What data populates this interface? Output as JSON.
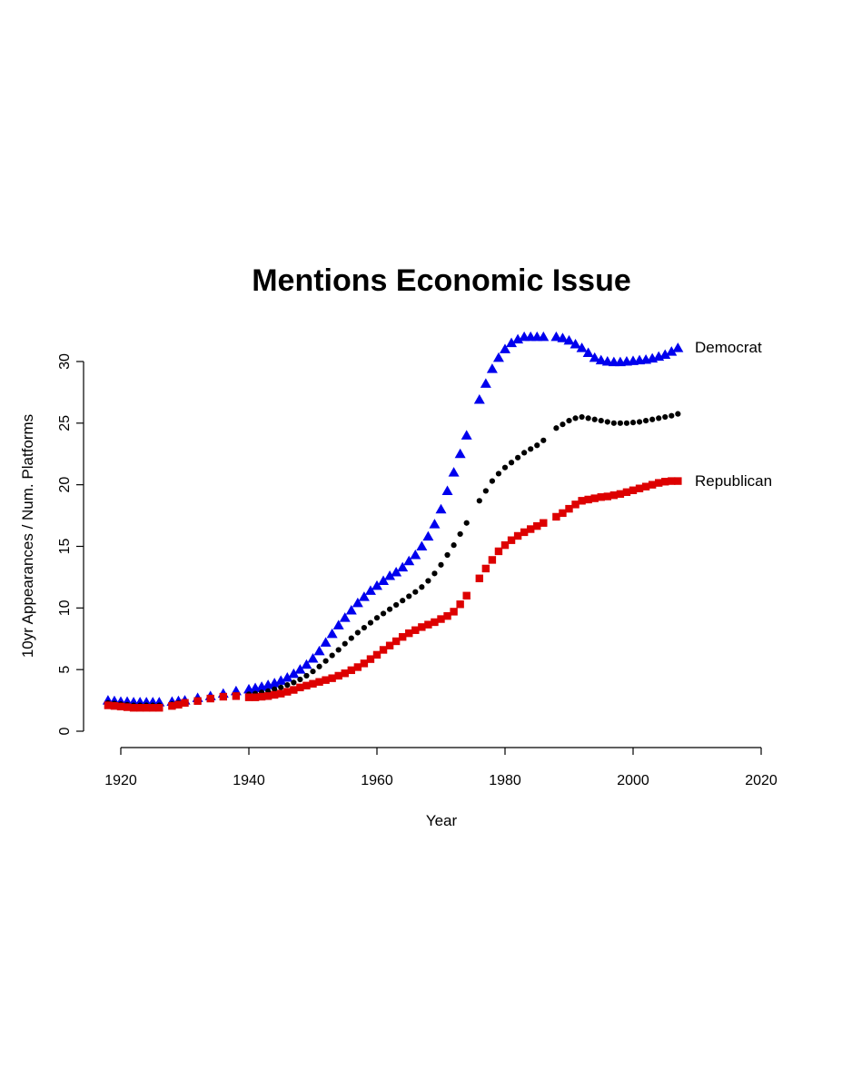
{
  "chart_data": {
    "type": "scatter",
    "title": "Mentions Economic Issue",
    "xlabel": "Year",
    "ylabel": "10yr Appearances / Num. Platforms",
    "xlim": [
      1918,
      2020
    ],
    "ylim": [
      0,
      32
    ],
    "xticks": [
      1920,
      1940,
      1960,
      1980,
      2000,
      2020
    ],
    "yticks": [
      0,
      5,
      10,
      15,
      20,
      25,
      30
    ],
    "grid": false,
    "legend": "none",
    "series": [
      {
        "name": "Democrat",
        "color": "#0000ee",
        "marker": "triangle",
        "points": [
          [
            1918,
            2.5
          ],
          [
            1919,
            2.45
          ],
          [
            1920,
            2.4
          ],
          [
            1921,
            2.4
          ],
          [
            1922,
            2.35
          ],
          [
            1923,
            2.35
          ],
          [
            1924,
            2.35
          ],
          [
            1925,
            2.35
          ],
          [
            1926,
            2.35
          ],
          [
            1928,
            2.4
          ],
          [
            1929,
            2.45
          ],
          [
            1930,
            2.5
          ],
          [
            1932,
            2.7
          ],
          [
            1934,
            2.85
          ],
          [
            1936,
            3.05
          ],
          [
            1938,
            3.25
          ],
          [
            1940,
            3.4
          ],
          [
            1941,
            3.5
          ],
          [
            1942,
            3.6
          ],
          [
            1943,
            3.75
          ],
          [
            1944,
            3.9
          ],
          [
            1945,
            4.1
          ],
          [
            1946,
            4.35
          ],
          [
            1947,
            4.65
          ],
          [
            1948,
            5.0
          ],
          [
            1949,
            5.4
          ],
          [
            1950,
            5.9
          ],
          [
            1951,
            6.5
          ],
          [
            1952,
            7.2
          ],
          [
            1953,
            7.9
          ],
          [
            1954,
            8.6
          ],
          [
            1955,
            9.2
          ],
          [
            1956,
            9.8
          ],
          [
            1957,
            10.4
          ],
          [
            1958,
            10.9
          ],
          [
            1959,
            11.4
          ],
          [
            1960,
            11.8
          ],
          [
            1961,
            12.2
          ],
          [
            1962,
            12.6
          ],
          [
            1963,
            12.9
          ],
          [
            1964,
            13.3
          ],
          [
            1965,
            13.8
          ],
          [
            1966,
            14.3
          ],
          [
            1967,
            15.0
          ],
          [
            1968,
            15.8
          ],
          [
            1969,
            16.8
          ],
          [
            1970,
            18.0
          ],
          [
            1971,
            19.5
          ],
          [
            1972,
            21.0
          ],
          [
            1973,
            22.5
          ],
          [
            1974,
            24.0
          ],
          [
            1976,
            26.9
          ],
          [
            1977,
            28.2
          ],
          [
            1978,
            29.4
          ],
          [
            1979,
            30.3
          ],
          [
            1980,
            31.0
          ],
          [
            1981,
            31.5
          ],
          [
            1982,
            31.8
          ],
          [
            1983,
            32.0
          ],
          [
            1984,
            32.0
          ],
          [
            1985,
            32.0
          ],
          [
            1986,
            32.0
          ],
          [
            1988,
            32.0
          ],
          [
            1989,
            31.9
          ],
          [
            1990,
            31.7
          ],
          [
            1991,
            31.4
          ],
          [
            1992,
            31.1
          ],
          [
            1993,
            30.7
          ],
          [
            1994,
            30.3
          ],
          [
            1995,
            30.1
          ],
          [
            1996,
            30.0
          ],
          [
            1997,
            29.95
          ],
          [
            1998,
            29.95
          ],
          [
            1999,
            30.0
          ],
          [
            2000,
            30.05
          ],
          [
            2001,
            30.1
          ],
          [
            2002,
            30.15
          ],
          [
            2003,
            30.25
          ],
          [
            2004,
            30.4
          ],
          [
            2005,
            30.55
          ],
          [
            2006,
            30.8
          ],
          [
            2007,
            31.1
          ]
        ]
      },
      {
        "name": "",
        "color": "#000000",
        "marker": "circle",
        "points": [
          [
            1918,
            2.3
          ],
          [
            1919,
            2.25
          ],
          [
            1920,
            2.2
          ],
          [
            1921,
            2.15
          ],
          [
            1922,
            2.1
          ],
          [
            1923,
            2.1
          ],
          [
            1924,
            2.1
          ],
          [
            1925,
            2.1
          ],
          [
            1926,
            2.1
          ],
          [
            1928,
            2.2
          ],
          [
            1929,
            2.3
          ],
          [
            1930,
            2.4
          ],
          [
            1932,
            2.55
          ],
          [
            1934,
            2.7
          ],
          [
            1936,
            2.85
          ],
          [
            1938,
            2.95
          ],
          [
            1940,
            3.0
          ],
          [
            1941,
            3.05
          ],
          [
            1942,
            3.15
          ],
          [
            1943,
            3.25
          ],
          [
            1944,
            3.4
          ],
          [
            1945,
            3.55
          ],
          [
            1946,
            3.75
          ],
          [
            1947,
            3.95
          ],
          [
            1948,
            4.2
          ],
          [
            1949,
            4.5
          ],
          [
            1950,
            4.85
          ],
          [
            1951,
            5.25
          ],
          [
            1952,
            5.7
          ],
          [
            1953,
            6.15
          ],
          [
            1954,
            6.6
          ],
          [
            1955,
            7.1
          ],
          [
            1956,
            7.55
          ],
          [
            1957,
            8.0
          ],
          [
            1958,
            8.4
          ],
          [
            1959,
            8.8
          ],
          [
            1960,
            9.2
          ],
          [
            1961,
            9.55
          ],
          [
            1962,
            9.9
          ],
          [
            1963,
            10.25
          ],
          [
            1964,
            10.6
          ],
          [
            1965,
            10.95
          ],
          [
            1966,
            11.3
          ],
          [
            1967,
            11.7
          ],
          [
            1968,
            12.2
          ],
          [
            1969,
            12.8
          ],
          [
            1970,
            13.5
          ],
          [
            1971,
            14.3
          ],
          [
            1972,
            15.1
          ],
          [
            1973,
            16.0
          ],
          [
            1974,
            16.9
          ],
          [
            1976,
            18.7
          ],
          [
            1977,
            19.5
          ],
          [
            1978,
            20.3
          ],
          [
            1979,
            20.9
          ],
          [
            1980,
            21.4
          ],
          [
            1981,
            21.8
          ],
          [
            1982,
            22.2
          ],
          [
            1983,
            22.6
          ],
          [
            1984,
            22.9
          ],
          [
            1985,
            23.2
          ],
          [
            1986,
            23.6
          ],
          [
            1988,
            24.6
          ],
          [
            1989,
            24.9
          ],
          [
            1990,
            25.2
          ],
          [
            1991,
            25.4
          ],
          [
            1992,
            25.5
          ],
          [
            1993,
            25.4
          ],
          [
            1994,
            25.3
          ],
          [
            1995,
            25.2
          ],
          [
            1996,
            25.1
          ],
          [
            1997,
            25.0
          ],
          [
            1998,
            25.0
          ],
          [
            1999,
            25.0
          ],
          [
            2000,
            25.05
          ],
          [
            2001,
            25.1
          ],
          [
            2002,
            25.2
          ],
          [
            2003,
            25.3
          ],
          [
            2004,
            25.4
          ],
          [
            2005,
            25.5
          ],
          [
            2006,
            25.6
          ],
          [
            2007,
            25.75
          ]
        ]
      },
      {
        "name": "Republican",
        "color": "#dd0000",
        "marker": "square",
        "points": [
          [
            1918,
            2.1
          ],
          [
            1919,
            2.05
          ],
          [
            1920,
            2.0
          ],
          [
            1921,
            1.95
          ],
          [
            1922,
            1.9
          ],
          [
            1923,
            1.9
          ],
          [
            1924,
            1.9
          ],
          [
            1925,
            1.9
          ],
          [
            1926,
            1.9
          ],
          [
            1928,
            2.05
          ],
          [
            1929,
            2.15
          ],
          [
            1930,
            2.3
          ],
          [
            1932,
            2.45
          ],
          [
            1934,
            2.65
          ],
          [
            1936,
            2.8
          ],
          [
            1938,
            2.85
          ],
          [
            1940,
            2.75
          ],
          [
            1941,
            2.75
          ],
          [
            1942,
            2.8
          ],
          [
            1943,
            2.85
          ],
          [
            1944,
            2.95
          ],
          [
            1945,
            3.05
          ],
          [
            1946,
            3.2
          ],
          [
            1947,
            3.35
          ],
          [
            1948,
            3.55
          ],
          [
            1949,
            3.7
          ],
          [
            1950,
            3.85
          ],
          [
            1951,
            4.0
          ],
          [
            1952,
            4.15
          ],
          [
            1953,
            4.3
          ],
          [
            1954,
            4.5
          ],
          [
            1955,
            4.7
          ],
          [
            1956,
            4.95
          ],
          [
            1957,
            5.2
          ],
          [
            1958,
            5.5
          ],
          [
            1959,
            5.85
          ],
          [
            1960,
            6.2
          ],
          [
            1961,
            6.6
          ],
          [
            1962,
            6.95
          ],
          [
            1963,
            7.3
          ],
          [
            1964,
            7.65
          ],
          [
            1965,
            7.95
          ],
          [
            1966,
            8.2
          ],
          [
            1967,
            8.45
          ],
          [
            1968,
            8.65
          ],
          [
            1969,
            8.85
          ],
          [
            1970,
            9.1
          ],
          [
            1971,
            9.35
          ],
          [
            1972,
            9.7
          ],
          [
            1973,
            10.3
          ],
          [
            1974,
            11.0
          ],
          [
            1976,
            12.4
          ],
          [
            1977,
            13.2
          ],
          [
            1978,
            13.9
          ],
          [
            1979,
            14.6
          ],
          [
            1980,
            15.1
          ],
          [
            1981,
            15.5
          ],
          [
            1982,
            15.85
          ],
          [
            1983,
            16.15
          ],
          [
            1984,
            16.4
          ],
          [
            1985,
            16.65
          ],
          [
            1986,
            16.9
          ],
          [
            1988,
            17.4
          ],
          [
            1989,
            17.7
          ],
          [
            1990,
            18.05
          ],
          [
            1991,
            18.4
          ],
          [
            1992,
            18.7
          ],
          [
            1993,
            18.8
          ],
          [
            1994,
            18.9
          ],
          [
            1995,
            19.0
          ],
          [
            1996,
            19.05
          ],
          [
            1997,
            19.15
          ],
          [
            1998,
            19.25
          ],
          [
            1999,
            19.4
          ],
          [
            2000,
            19.55
          ],
          [
            2001,
            19.7
          ],
          [
            2002,
            19.85
          ],
          [
            2003,
            20.0
          ],
          [
            2004,
            20.15
          ],
          [
            2005,
            20.25
          ],
          [
            2006,
            20.3
          ],
          [
            2007,
            20.3
          ]
        ]
      }
    ]
  }
}
